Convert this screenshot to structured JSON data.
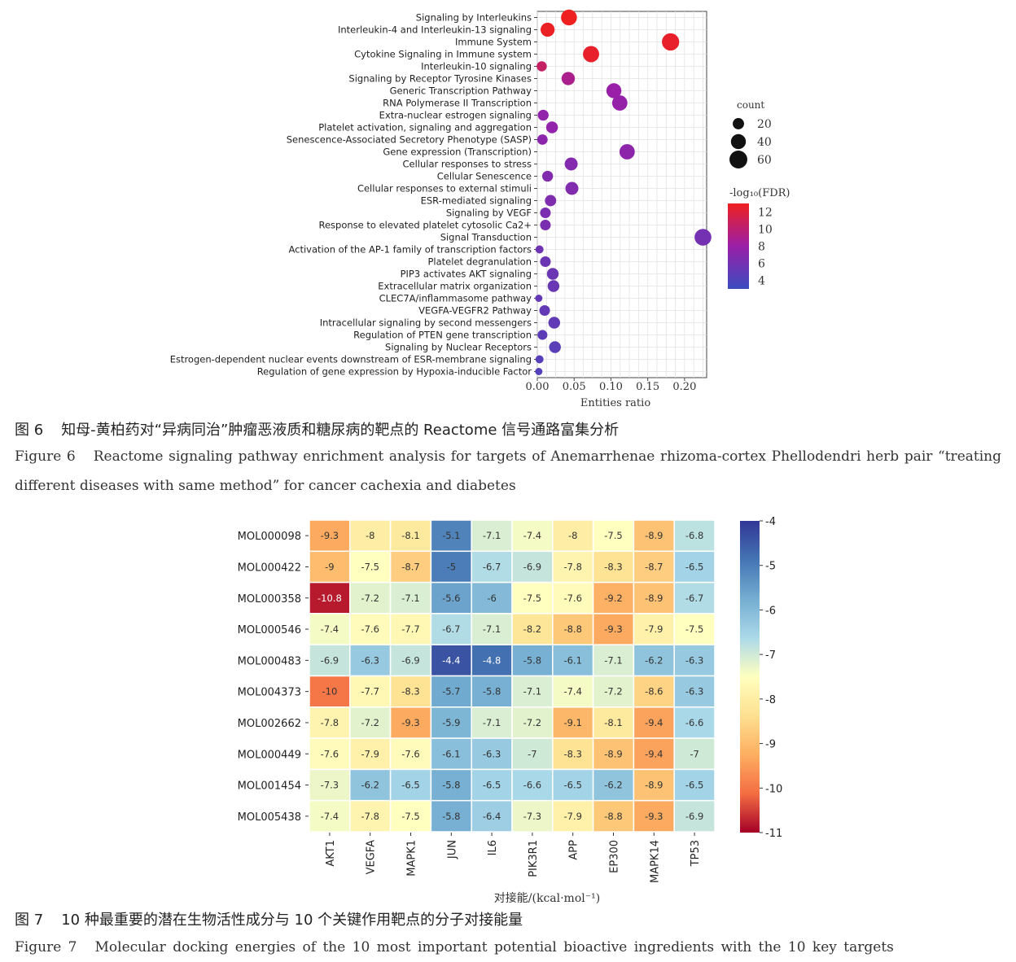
{
  "figure6": {
    "caption_zh_label": "图 6",
    "caption_zh": "知母-黄柏药对“异病同治”肿瘤恶液质和糖尿病的靶点的 Reactome 信号通路富集分析",
    "caption_en_label": "Figure 6",
    "caption_en": "Reactome signaling pathway enrichment analysis for targets of Anemarrhenae rhizoma-cortex Phellodendri herb pair “treating different diseases with same method” for cancer cachexia and diabetes"
  },
  "figure7": {
    "caption_zh_label": "图 7",
    "caption_zh": "10 种最重要的潜在生物活性成分与 10 个关键作用靶点的分子对接能量",
    "caption_en_label": "Figure 7",
    "caption_en": "Molecular docking energies of the 10 most important potential bioactive ingredients with the 10 key targets"
  },
  "colors": {
    "fdr_low": "#3b4cc0",
    "fdr_mid": "#9a1fa8",
    "fdr_high": "#ee2020",
    "heat_low": "#a50026",
    "heat_mid": "#ffffbf",
    "heat_high": "#313695"
  },
  "chart_data": [
    {
      "type": "scatter",
      "subtype": "dot-plot",
      "xlabel": "Entities ratio",
      "xlim": [
        0,
        0.23
      ],
      "xticks": [
        0.0,
        0.05,
        0.1,
        0.15,
        0.2
      ],
      "xtick_labels": [
        "0.00",
        "0.05",
        "0.10",
        "0.15",
        "0.20"
      ],
      "grid": true,
      "legend_position": "right",
      "size_legend": {
        "title": "count",
        "values": [
          20,
          40,
          60
        ],
        "labels": [
          "20",
          "40",
          "60"
        ]
      },
      "color_legend": {
        "title": "-log₁₀(FDR)",
        "ticks": [
          4,
          6,
          8,
          10,
          12
        ],
        "tick_labels": [
          "4",
          "6",
          "8",
          "10",
          "12"
        ],
        "range": [
          3,
          13
        ]
      },
      "pathways": [
        {
          "name": "Signaling by Interleukins",
          "ratio": 0.043,
          "count": 46,
          "fdr": 13
        },
        {
          "name": "Interleukin-4 and Interleukin-13 signaling",
          "ratio": 0.014,
          "count": 34,
          "fdr": 12.8
        },
        {
          "name": "Immune System",
          "ratio": 0.181,
          "count": 56,
          "fdr": 12.6
        },
        {
          "name": "Cytokine Signaling in Immune system",
          "ratio": 0.073,
          "count": 48,
          "fdr": 12.6
        },
        {
          "name": "Interleukin-10 signaling",
          "ratio": 0.006,
          "count": 15,
          "fdr": 10.5
        },
        {
          "name": "Signaling by Receptor Tyrosine Kinases",
          "ratio": 0.042,
          "count": 30,
          "fdr": 9
        },
        {
          "name": "Generic Transcription Pathway",
          "ratio": 0.104,
          "count": 40,
          "fdr": 8
        },
        {
          "name": "RNA Polymerase II Transcription",
          "ratio": 0.112,
          "count": 42,
          "fdr": 7.8
        },
        {
          "name": "Extra-nuclear estrogen signaling",
          "ratio": 0.008,
          "count": 18,
          "fdr": 7.5
        },
        {
          "name": "Platelet activation, signaling and aggregation",
          "ratio": 0.02,
          "count": 22,
          "fdr": 7.5
        },
        {
          "name": "Senescence-Associated Secretory Phenotype (SASP)",
          "ratio": 0.007,
          "count": 16,
          "fdr": 7.2
        },
        {
          "name": "Gene expression (Transcription)",
          "ratio": 0.122,
          "count": 42,
          "fdr": 7.3
        },
        {
          "name": "Cellular responses to stress",
          "ratio": 0.046,
          "count": 28,
          "fdr": 6.8
        },
        {
          "name": "Cellular Senescence",
          "ratio": 0.014,
          "count": 18,
          "fdr": 6.7
        },
        {
          "name": "Cellular responses to external stimuli",
          "ratio": 0.047,
          "count": 28,
          "fdr": 6.7
        },
        {
          "name": "ESR-mediated signaling",
          "ratio": 0.018,
          "count": 20,
          "fdr": 6.5
        },
        {
          "name": "Signaling by VEGF",
          "ratio": 0.011,
          "count": 17,
          "fdr": 6.3
        },
        {
          "name": "Response to elevated platelet cytosolic Ca2+",
          "ratio": 0.011,
          "count": 17,
          "fdr": 6.3
        },
        {
          "name": "Signal Transduction",
          "ratio": 0.225,
          "count": 52,
          "fdr": 6
        },
        {
          "name": "Activation of the AP-1 family of transcription factors",
          "ratio": 0.003,
          "count": 8,
          "fdr": 5.8
        },
        {
          "name": "Platelet degranulation",
          "ratio": 0.011,
          "count": 17,
          "fdr": 5.6
        },
        {
          "name": "PIP3 activates AKT signaling",
          "ratio": 0.021,
          "count": 22,
          "fdr": 5.5
        },
        {
          "name": "Extracellular matrix organization",
          "ratio": 0.022,
          "count": 22,
          "fdr": 5.4
        },
        {
          "name": "CLEC7A/inflammasome pathway",
          "ratio": 0.002,
          "count": 6,
          "fdr": 5.2
        },
        {
          "name": "VEGFA-VEGFR2 Pathway",
          "ratio": 0.01,
          "count": 17,
          "fdr": 5.1
        },
        {
          "name": "Intracellular signaling by second messengers",
          "ratio": 0.023,
          "count": 22,
          "fdr": 5
        },
        {
          "name": "Regulation of PTEN gene transcription",
          "ratio": 0.007,
          "count": 14,
          "fdr": 4.8
        },
        {
          "name": "Signaling by Nuclear Receptors",
          "ratio": 0.024,
          "count": 22,
          "fdr": 4.6
        },
        {
          "name": "Estrogen-dependent nuclear events downstream of ESR-membrane signaling",
          "ratio": 0.003,
          "count": 8,
          "fdr": 4.4
        },
        {
          "name": "Regulation of gene expression by Hypoxia-inducible Factor",
          "ratio": 0.002,
          "count": 6,
          "fdr": 4.2
        }
      ]
    },
    {
      "type": "heatmap",
      "xlabel": "对接能/(kcal·mol⁻¹)",
      "rows": [
        "MOL000098",
        "MOL000422",
        "MOL000358",
        "MOL000546",
        "MOL000483",
        "MOL004373",
        "MOL002662",
        "MOL000449",
        "MOL001454",
        "MOL005438"
      ],
      "columns": [
        "AKT1",
        "VEGFA",
        "MAPK1",
        "JUN",
        "IL6",
        "PIK3R1",
        "APP",
        "EP300",
        "MAPK14",
        "TP53"
      ],
      "values": [
        [
          -9.3,
          -8,
          -8.1,
          -5.1,
          -7.1,
          -7.4,
          -8,
          -7.5,
          -8.9,
          -6.8
        ],
        [
          -9,
          -7.5,
          -8.7,
          -5,
          -6.7,
          -6.9,
          -7.8,
          -8.3,
          -8.7,
          -6.5
        ],
        [
          -10.8,
          -7.2,
          -7.1,
          -5.6,
          -6,
          -7.5,
          -7.6,
          -9.2,
          -8.9,
          -6.7
        ],
        [
          -7.4,
          -7.6,
          -7.7,
          -6.7,
          -7.1,
          -8.2,
          -8.8,
          -9.3,
          -7.9,
          -7.5
        ],
        [
          -6.9,
          -6.3,
          -6.9,
          -4.4,
          -4.8,
          -5.8,
          -6.1,
          -7.1,
          -6.2,
          -6.3
        ],
        [
          -10,
          -7.7,
          -8.3,
          -5.7,
          -5.8,
          -7.1,
          -7.4,
          -7.2,
          -8.6,
          -6.3
        ],
        [
          -7.8,
          -7.2,
          -9.3,
          -5.9,
          -7.1,
          -7.2,
          -9.1,
          -8.1,
          -9.4,
          -6.6
        ],
        [
          -7.6,
          -7.9,
          -7.6,
          -6.1,
          -6.3,
          -7,
          -8.3,
          -8.9,
          -9.4,
          -7
        ],
        [
          -7.3,
          -6.2,
          -6.5,
          -5.8,
          -6.5,
          -6.6,
          -6.5,
          -6.2,
          -8.9,
          -6.5
        ],
        [
          -7.4,
          -7.8,
          -7.5,
          -5.8,
          -6.4,
          -7.3,
          -7.9,
          -8.8,
          -9.3,
          -6.9
        ]
      ],
      "value_labels": [
        [
          "-9.3",
          "-8",
          "-8.1",
          "-5.1",
          "-7.1",
          "-7.4",
          "-8",
          "-7.5",
          "-8.9",
          "-6.8"
        ],
        [
          "-9",
          "-7.5",
          "-8.7",
          "-5",
          "-6.7",
          "-6.9",
          "-7.8",
          "-8.3",
          "-8.7",
          "-6.5"
        ],
        [
          "-10.8",
          "-7.2",
          "-7.1",
          "-5.6",
          "-6",
          "-7.5",
          "-7.6",
          "-9.2",
          "-8.9",
          "-6.7"
        ],
        [
          "-7.4",
          "-7.6",
          "-7.7",
          "-6.7",
          "-7.1",
          "-8.2",
          "-8.8",
          "-9.3",
          "-7.9",
          "-7.5"
        ],
        [
          "-6.9",
          "-6.3",
          "-6.9",
          "-4.4",
          "-4.8",
          "-5.8",
          "-6.1",
          "-7.1",
          "-6.2",
          "-6.3"
        ],
        [
          "-10",
          "-7.7",
          "-8.3",
          "-5.7",
          "-5.8",
          "-7.1",
          "-7.4",
          "-7.2",
          "-8.6",
          "-6.3"
        ],
        [
          "-7.8",
          "-7.2",
          "-9.3",
          "-5.9",
          "-7.1",
          "-7.2",
          "-9.1",
          "-8.1",
          "-9.4",
          "-6.6"
        ],
        [
          "-7.6",
          "-7.9",
          "-7.6",
          "-6.1",
          "-6.3",
          "-7",
          "-8.3",
          "-8.9",
          "-9.4",
          "-7"
        ],
        [
          "-7.3",
          "-6.2",
          "-6.5",
          "-5.8",
          "-6.5",
          "-6.6",
          "-6.5",
          "-6.2",
          "-8.9",
          "-6.5"
        ],
        [
          "-7.4",
          "-7.8",
          "-7.5",
          "-5.8",
          "-6.4",
          "-7.3",
          "-7.9",
          "-8.8",
          "-9.3",
          "-6.9"
        ]
      ],
      "color_range": [
        -11,
        -4
      ],
      "colorbar_ticks": [
        -4,
        -5,
        -6,
        -7,
        -8,
        -9,
        -10,
        -11
      ],
      "colorbar_tick_labels": [
        "-4",
        "-5",
        "-6",
        "-7",
        "-8",
        "-9",
        "-10",
        "-11"
      ],
      "legend_position": "right"
    }
  ]
}
